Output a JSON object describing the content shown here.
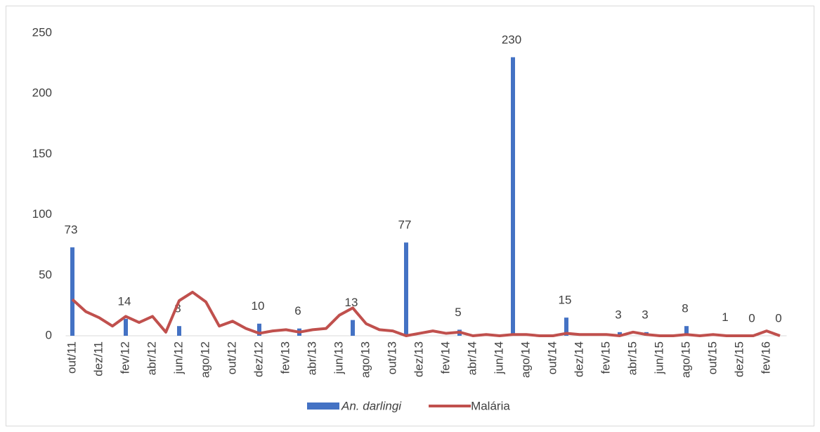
{
  "chart_data": {
    "type": "bar_line",
    "categories": [
      "out/11",
      null,
      "dez/11",
      null,
      "fev/12",
      null,
      "abr/12",
      null,
      "jun/12",
      null,
      "ago/12",
      null,
      "out/12",
      null,
      "dez/12",
      null,
      "fev/13",
      null,
      "abr/13",
      null,
      "jun/13",
      null,
      "ago/13",
      null,
      "out/13",
      null,
      "dez/13",
      null,
      "fev/14",
      null,
      "abr/14",
      null,
      "jun/14",
      null,
      "ago/14",
      null,
      "out/14",
      null,
      "dez/14",
      null,
      "fev/15",
      null,
      "abr/15",
      null,
      "jun/15",
      null,
      "ago/15",
      null,
      "out/15",
      null,
      "dez/15",
      null,
      "fev/16",
      null
    ],
    "series": [
      {
        "name": "An. darlingi",
        "type": "bar",
        "color": "#4472c4",
        "values": [
          73,
          null,
          null,
          null,
          14,
          null,
          null,
          null,
          8,
          null,
          null,
          null,
          null,
          null,
          10,
          null,
          null,
          6,
          null,
          null,
          null,
          13,
          null,
          null,
          null,
          77,
          null,
          null,
          null,
          5,
          null,
          null,
          null,
          230,
          null,
          null,
          null,
          15,
          null,
          null,
          null,
          3,
          null,
          3,
          null,
          null,
          8,
          null,
          null,
          1,
          null,
          0,
          null,
          0
        ]
      },
      {
        "name": "Malária",
        "type": "line",
        "color": "#c0504d",
        "values": [
          30,
          20,
          15,
          8,
          16,
          11,
          16,
          3,
          29,
          36,
          28,
          8,
          12,
          6,
          2,
          4,
          5,
          3,
          5,
          6,
          17,
          23,
          10,
          5,
          4,
          0,
          2,
          4,
          2,
          3,
          0,
          1,
          0,
          1,
          1,
          0,
          0,
          2,
          1,
          1,
          1,
          0,
          3,
          1,
          0,
          0,
          1,
          0,
          1,
          0,
          0,
          0,
          4,
          0
        ]
      }
    ],
    "ylim": [
      0,
      250
    ],
    "yticks": [
      0,
      50,
      100,
      150,
      200,
      250
    ],
    "grid": false,
    "legend": "bottom"
  }
}
